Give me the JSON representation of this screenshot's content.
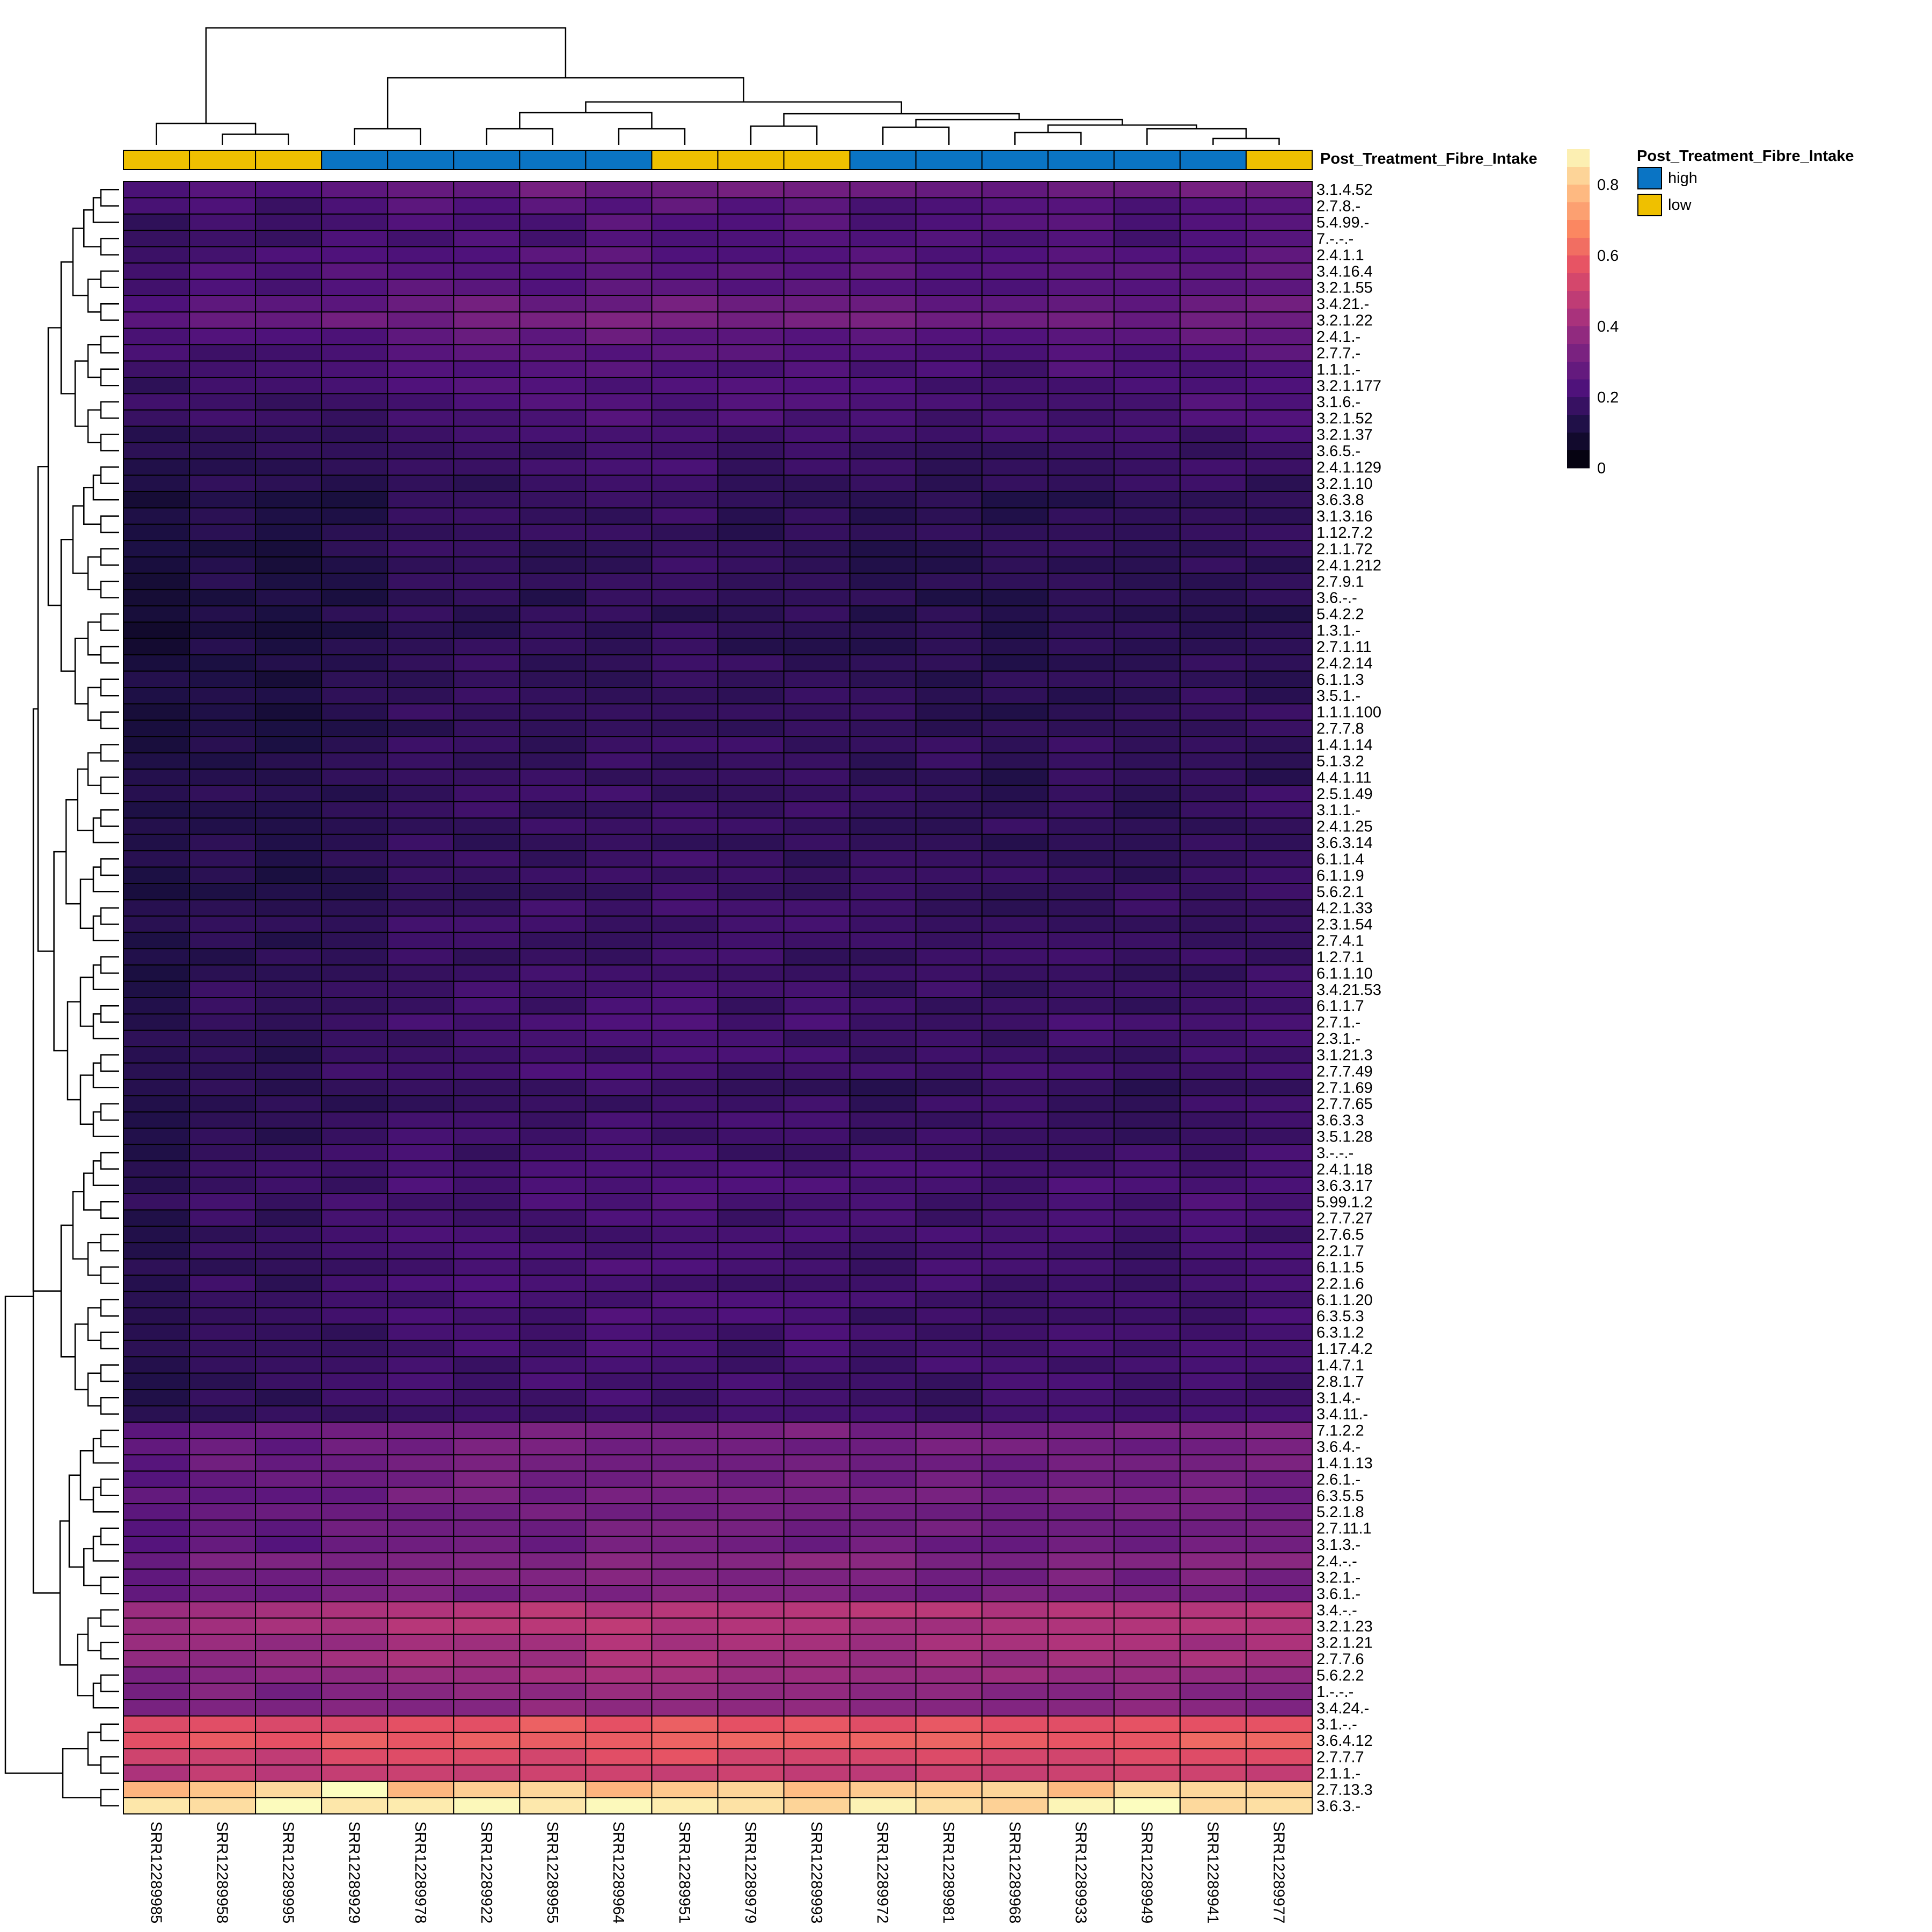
{
  "chart_data": {
    "type": "heatmap",
    "annotation": {
      "title": "Post_Treatment_Fibre_Intake",
      "levels": [
        {
          "name": "high",
          "color": "#0A74C4"
        },
        {
          "name": "low",
          "color": "#EFC000"
        }
      ],
      "values": [
        "low",
        "low",
        "low",
        "high",
        "high",
        "high",
        "high",
        "high",
        "low",
        "low",
        "low",
        "high",
        "high",
        "high",
        "high",
        "high",
        "high",
        "low"
      ]
    },
    "columns": [
      "SRR12289985",
      "SRR12289958",
      "SRR12289995",
      "SRR12289929",
      "SRR12289978",
      "SRR12289922",
      "SRR12289955",
      "SRR12289964",
      "SRR12289951",
      "SRR12289979",
      "SRR12289993",
      "SRR12289972",
      "SRR12289981",
      "SRR12289968",
      "SRR12289933",
      "SRR12289949",
      "SRR12289941",
      "SRR12289977"
    ],
    "rows": [
      "3.1.4.52",
      "2.7.8.-",
      "5.4.99.-",
      "7.-.-.-",
      "2.4.1.1",
      "3.4.16.4",
      "3.2.1.55",
      "3.4.21.-",
      "3.2.1.22",
      "2.4.1.-",
      "2.7.7.-",
      "1.1.1.-",
      "3.2.1.177",
      "3.1.6.-",
      "3.2.1.52",
      "3.2.1.37",
      "3.6.5.-",
      "2.4.1.129",
      "3.2.1.10",
      "3.6.3.8",
      "3.1.3.16",
      "1.12.7.2",
      "2.1.1.72",
      "2.4.1.212",
      "2.7.9.1",
      "3.6.-.-",
      "5.4.2.2",
      "1.3.1.-",
      "2.7.1.11",
      "2.4.2.14",
      "6.1.1.3",
      "3.5.1.-",
      "1.1.1.100",
      "2.7.7.8",
      "1.4.1.14",
      "5.1.3.2",
      "4.4.1.11",
      "2.5.1.49",
      "3.1.1.-",
      "2.4.1.25",
      "3.6.3.14",
      "6.1.1.4",
      "6.1.1.9",
      "5.6.2.1",
      "4.2.1.33",
      "2.3.1.54",
      "2.7.4.1",
      "1.2.7.1",
      "6.1.1.10",
      "3.4.21.53",
      "6.1.1.7",
      "2.7.1.-",
      "2.3.1.-",
      "3.1.21.3",
      "2.7.7.49",
      "2.7.1.69",
      "2.7.7.65",
      "3.6.3.3",
      "3.5.1.28",
      "3.-.-.-",
      "2.4.1.18",
      "3.6.3.17",
      "5.99.1.2",
      "2.7.7.27",
      "2.7.6.5",
      "2.2.1.7",
      "6.1.1.5",
      "2.2.1.6",
      "6.1.1.20",
      "6.3.5.3",
      "6.3.1.2",
      "1.17.4.2",
      "1.4.7.1",
      "2.8.1.7",
      "3.1.4.-",
      "3.4.11.-",
      "7.1.2.2",
      "3.6.4.-",
      "1.4.1.13",
      "2.6.1.-",
      "6.3.5.5",
      "5.2.1.8",
      "2.7.11.1",
      "3.1.3.-",
      "2.4.-.-",
      "3.2.1.-",
      "3.6.1.-",
      "3.4.-.-",
      "3.2.1.23",
      "3.2.1.21",
      "2.7.7.6",
      "5.6.2.2",
      "1.-.-.-",
      "3.4.24.-",
      "3.1.-.-",
      "3.6.4.12",
      "2.7.7.7",
      "2.1.1.-",
      "2.7.13.3",
      "3.6.3.-"
    ],
    "row_base_values": [
      0.27,
      0.22,
      0.21,
      0.2,
      0.22,
      0.23,
      0.22,
      0.27,
      0.29,
      0.24,
      0.22,
      0.2,
      0.2,
      0.2,
      0.19,
      0.17,
      0.16,
      0.16,
      0.15,
      0.13,
      0.14,
      0.14,
      0.14,
      0.14,
      0.14,
      0.13,
      0.13,
      0.13,
      0.13,
      0.14,
      0.14,
      0.14,
      0.14,
      0.14,
      0.15,
      0.15,
      0.14,
      0.15,
      0.15,
      0.15,
      0.15,
      0.15,
      0.15,
      0.15,
      0.16,
      0.16,
      0.16,
      0.16,
      0.16,
      0.17,
      0.17,
      0.18,
      0.17,
      0.17,
      0.18,
      0.15,
      0.16,
      0.17,
      0.17,
      0.17,
      0.19,
      0.19,
      0.19,
      0.18,
      0.18,
      0.18,
      0.18,
      0.18,
      0.18,
      0.18,
      0.18,
      0.18,
      0.18,
      0.18,
      0.17,
      0.17,
      0.3,
      0.29,
      0.29,
      0.29,
      0.29,
      0.29,
      0.29,
      0.28,
      0.33,
      0.3,
      0.3,
      0.43,
      0.42,
      0.4,
      0.39,
      0.37,
      0.34,
      0.34,
      0.56,
      0.58,
      0.52,
      0.48,
      0.8,
      0.86
    ],
    "color_scale": {
      "name": "magma",
      "range": [
        0,
        0.9
      ],
      "ticks": [
        0,
        0.2,
        0.4,
        0.6,
        0.8
      ],
      "tick_labels": [
        "0",
        "0.2",
        "0.4",
        "0.6",
        "0.8"
      ]
    },
    "column_dendrogram": true,
    "row_dendrogram": true
  }
}
